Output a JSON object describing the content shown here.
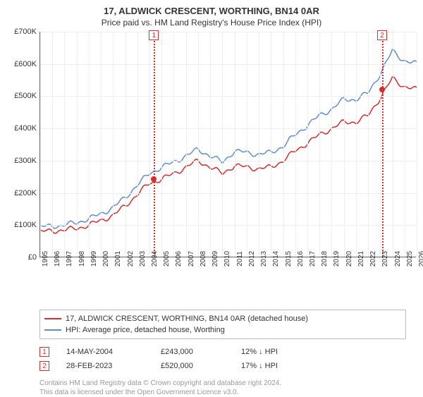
{
  "title": "17, ALDWICK CRESCENT, WORTHING, BN14 0AR",
  "subtitle": "Price paid vs. HM Land Registry's House Price Index (HPI)",
  "chart": {
    "type": "line",
    "background_color": "#ffffff",
    "grid_color": "#eeeeee",
    "axis_color": "#666666",
    "ylim": [
      0,
      700000
    ],
    "ytick_step": 100000,
    "yticks": [
      "£0",
      "£100K",
      "£200K",
      "£300K",
      "£400K",
      "£500K",
      "£600K",
      "£700K"
    ],
    "x_years": [
      1995,
      1996,
      1997,
      1998,
      1999,
      2000,
      2001,
      2002,
      2003,
      2004,
      2005,
      2006,
      2007,
      2008,
      2009,
      2010,
      2011,
      2012,
      2013,
      2014,
      2015,
      2016,
      2017,
      2018,
      2019,
      2020,
      2021,
      2022,
      2023,
      2024,
      2025,
      2026
    ],
    "series": [
      {
        "name": "17, ALDWICK CRESCENT, WORTHING, BN14 0AR (detached house)",
        "color": "#d92c2c",
        "line_width": 1.5,
        "values_k": [
          80,
          82,
          85,
          90,
          100,
          115,
          130,
          160,
          195,
          230,
          243,
          260,
          280,
          300,
          280,
          260,
          285,
          280,
          275,
          280,
          300,
          330,
          355,
          380,
          400,
          420,
          420,
          440,
          495,
          555,
          530,
          520
        ]
      },
      {
        "name": "HPI: Average price, detached house, Worthing",
        "color": "#5f8dd3",
        "line_width": 1.5,
        "values_k": [
          95,
          97,
          100,
          108,
          120,
          135,
          155,
          185,
          225,
          260,
          280,
          295,
          315,
          335,
          315,
          295,
          330,
          325,
          320,
          325,
          345,
          380,
          410,
          440,
          460,
          490,
          490,
          510,
          570,
          640,
          610,
          600
        ]
      }
    ],
    "sale_markers": [
      {
        "label": "1",
        "year": 2004.37,
        "value_k": 243
      },
      {
        "label": "2",
        "year": 2023.16,
        "value_k": 520
      }
    ]
  },
  "legend": {
    "items": [
      {
        "swatch_color": "#d92c2c",
        "label": "17, ALDWICK CRESCENT, WORTHING, BN14 0AR (detached house)"
      },
      {
        "swatch_color": "#5f8dd3",
        "label": "HPI: Average price, detached house, Worthing"
      }
    ]
  },
  "sales": [
    {
      "num": "1",
      "date": "14-MAY-2004",
      "price": "£243,000",
      "delta": "12% ↓ HPI"
    },
    {
      "num": "2",
      "date": "28-FEB-2023",
      "price": "£520,000",
      "delta": "17% ↓ HPI"
    }
  ],
  "attribution": {
    "line1": "Contains HM Land Registry data © Crown copyright and database right 2024.",
    "line2": "This data is licensed under the Open Government Licence v3.0."
  }
}
